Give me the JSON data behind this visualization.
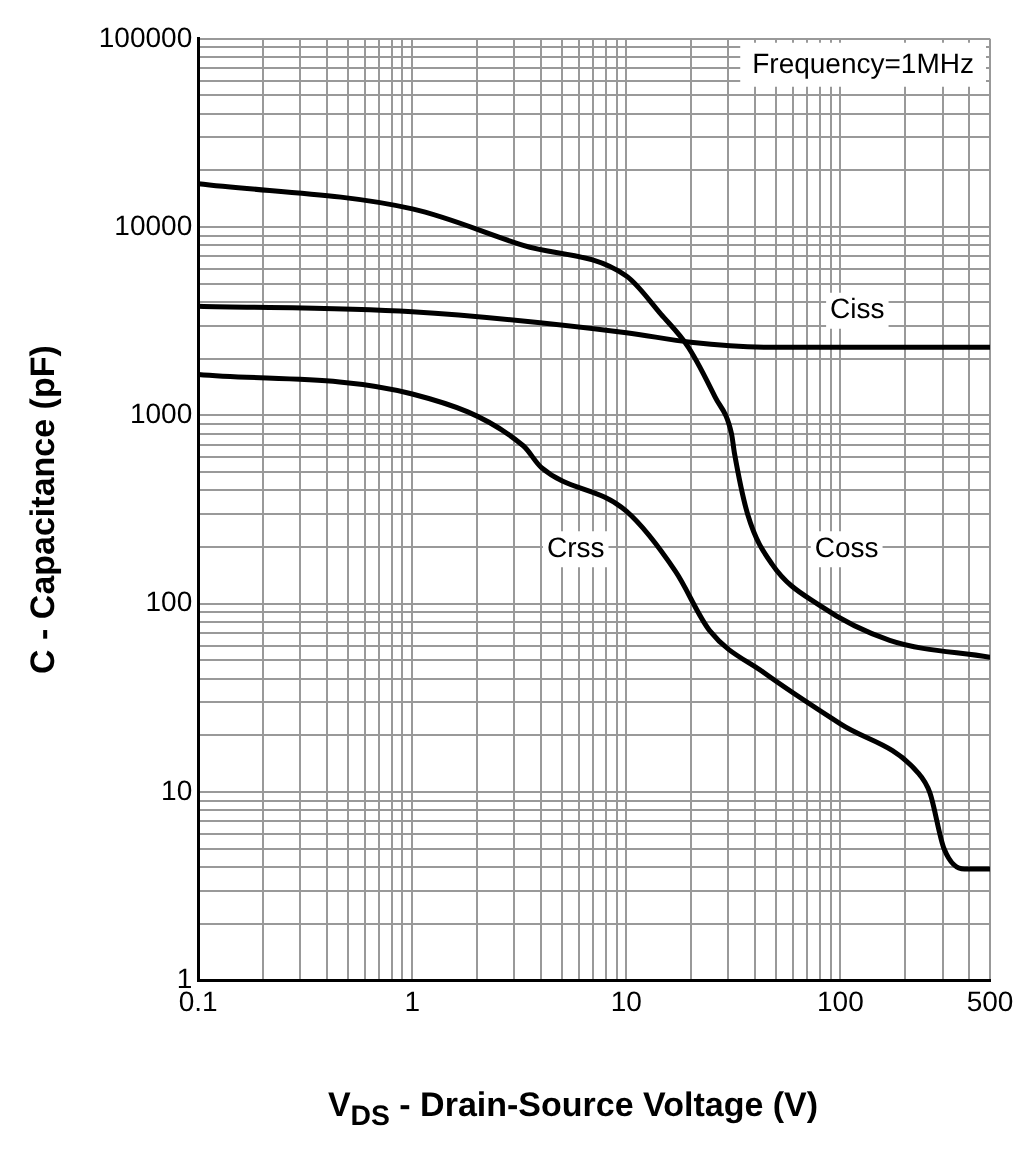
{
  "chart_data": {
    "type": "line",
    "xlabel": "V$_{DS}$ - Drain-Source Voltage (V)",
    "ylabel": "C - Capacitance (pF)",
    "log": "xy",
    "grid": true,
    "legend": false,
    "marker": "none",
    "line_style": "solid",
    "xlim": [
      0.1,
      500
    ],
    "ylim": [
      1,
      100000
    ],
    "xticks": [
      0.1,
      {
        "value": 0.2,
        "label": null
      },
      {
        "value": 0.3,
        "label": null
      },
      {
        "value": 0.4,
        "label": null
      },
      {
        "value": 0.5,
        "label": null
      },
      {
        "value": 0.6,
        "label": null
      },
      {
        "value": 0.7,
        "label": null
      },
      {
        "value": 0.8,
        "label": null
      },
      {
        "value": 0.9,
        "label": null
      },
      1,
      {
        "value": 2,
        "label": null
      },
      {
        "value": 3,
        "label": null
      },
      {
        "value": 4,
        "label": null
      },
      {
        "value": 5,
        "label": null
      },
      {
        "value": 6,
        "label": null
      },
      {
        "value": 7,
        "label": null
      },
      {
        "value": 8,
        "label": null
      },
      {
        "value": 9,
        "label": null
      },
      10,
      {
        "value": 20,
        "label": null
      },
      {
        "value": 30,
        "label": null
      },
      {
        "value": 40,
        "label": null
      },
      {
        "value": 50,
        "label": null
      },
      {
        "value": 60,
        "label": null
      },
      {
        "value": 70,
        "label": null
      },
      {
        "value": 80,
        "label": null
      },
      {
        "value": 90,
        "label": null
      },
      100,
      {
        "value": 200,
        "label": null
      },
      {
        "value": 300,
        "label": null
      },
      {
        "value": 400,
        "label": null
      },
      500
    ],
    "yticks": [
      1,
      {
        "value": 2,
        "label": null
      },
      {
        "value": 3,
        "label": null
      },
      {
        "value": 4,
        "label": null
      },
      {
        "value": 5,
        "label": null
      },
      {
        "value": 6,
        "label": null
      },
      {
        "value": 7,
        "label": null
      },
      {
        "value": 8,
        "label": null
      },
      {
        "value": 9,
        "label": null
      },
      10,
      {
        "value": 20,
        "label": null
      },
      {
        "value": 30,
        "label": null
      },
      {
        "value": 40,
        "label": null
      },
      {
        "value": 50,
        "label": null
      },
      {
        "value": 60,
        "label": null
      },
      {
        "value": 70,
        "label": null
      },
      {
        "value": 80,
        "label": null
      },
      {
        "value": 90,
        "label": null
      },
      100,
      {
        "value": 200,
        "label": null
      },
      {
        "value": 300,
        "label": null
      },
      {
        "value": 400,
        "label": null
      },
      {
        "value": 500,
        "label": null
      },
      {
        "value": 600,
        "label": null
      },
      {
        "value": 700,
        "label": null
      },
      {
        "value": 800,
        "label": null
      },
      {
        "value": 900,
        "label": null
      },
      1000,
      {
        "value": 2000,
        "label": null
      },
      {
        "value": 3000,
        "label": null
      },
      {
        "value": 4000,
        "label": null
      },
      {
        "value": 5000,
        "label": null
      },
      {
        "value": 6000,
        "label": null
      },
      {
        "value": 7000,
        "label": null
      },
      {
        "value": 8000,
        "label": null
      },
      {
        "value": 9000,
        "label": null
      },
      10000,
      {
        "value": 20000,
        "label": null
      },
      {
        "value": 30000,
        "label": null
      },
      {
        "value": 40000,
        "label": null
      },
      {
        "value": 50000,
        "label": null
      },
      {
        "value": 60000,
        "label": null
      },
      {
        "value": 70000,
        "label": null
      },
      {
        "value": 80000,
        "label": null
      },
      {
        "value": 90000,
        "label": null
      },
      100000
    ],
    "series": [
      {
        "color": "#000000",
        "x": [
          0.1,
          1,
          10,
          20,
          50,
          100,
          500
        ],
        "values": [
          3800,
          3550,
          2750,
          2450,
          2300,
          2300,
          2300
        ]
      },
      {
        "color": "#000000",
        "x": [
          0.1,
          1,
          3.3,
          10,
          14.5,
          19.5,
          26,
          31,
          32,
          37,
          48,
          80,
          170,
          500
        ],
        "values": [
          17000,
          12500,
          8000,
          5500,
          3450,
          2300,
          1250,
          800,
          630,
          295,
          162,
          98,
          64,
          52
        ]
      },
      {
        "color": "#000000",
        "x": [
          0.1,
          1,
          3.3,
          4,
          10,
          17,
          24.5,
          44,
          100,
          230,
          262,
          305,
          380,
          500
        ],
        "values": [
          1650,
          1300,
          690,
          530,
          310,
          148,
          72,
          43,
          23,
          12.7,
          9.9,
          5,
          3.9,
          3.9
        ]
      }
    ],
    "annotations": [
      "Frequency=1MHz",
      {
        "text": "Ciss",
        "x": 120,
        "y": 3600
      },
      {
        "text": "Coss",
        "x": 107,
        "y": 195
      },
      {
        "text": "Crss",
        "x": 5.8,
        "y": 195
      }
    ]
  }
}
